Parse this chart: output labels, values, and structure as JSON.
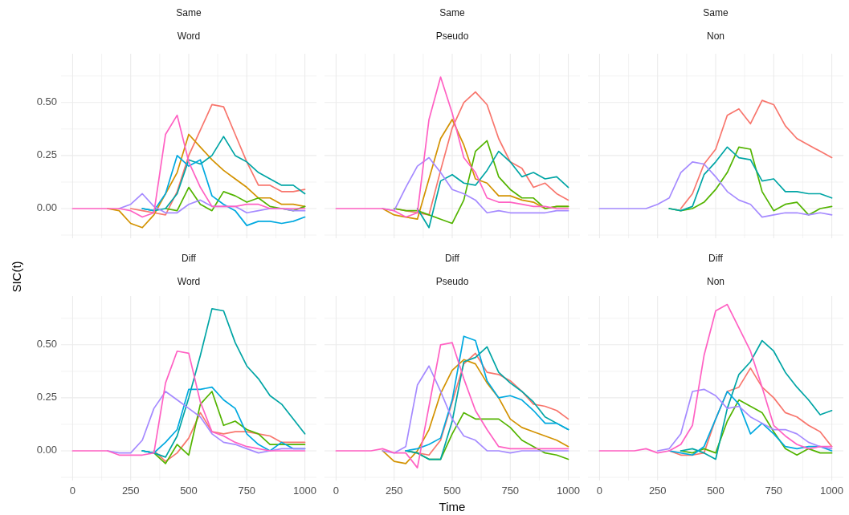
{
  "chart_data": [
    {
      "type": "line",
      "title": "Same",
      "subtitle": "Word",
      "x": [
        0,
        50,
        100,
        150,
        200,
        250,
        300,
        350,
        400,
        450,
        500,
        550,
        600,
        650,
        700,
        750,
        800,
        850,
        900,
        950,
        1000
      ],
      "xlim": [
        -50,
        1050
      ],
      "xticks": [
        0,
        {
          "value": 125,
          "label": null
        },
        250,
        {
          "value": 375,
          "label": null
        },
        500,
        {
          "value": 625,
          "label": null
        },
        750,
        {
          "value": 875,
          "label": null
        },
        1000
      ],
      "ylim": [
        -0.14,
        0.73
      ],
      "yticks": [
        {
          "value": -0.125,
          "label": null
        },
        {
          "value": 0,
          "label": "0.00"
        },
        {
          "value": 0.125,
          "label": null
        },
        {
          "value": 0.25,
          "label": "0.25"
        },
        {
          "value": 0.375,
          "label": null
        },
        {
          "value": 0.5,
          "label": "0.50"
        },
        {
          "value": 0.625,
          "label": null
        }
      ],
      "grid": true,
      "tick_labels": "y",
      "series": [
        {
          "color": "#F8766D",
          "values": [
            null,
            null,
            null,
            null,
            null,
            0,
            -0.01,
            -0.02,
            -0.03,
            0.08,
            0.25,
            0.37,
            0.49,
            0.48,
            0.35,
            0.22,
            0.11,
            0.11,
            0.08,
            0.08,
            0.09
          ]
        },
        {
          "color": "#D39200",
          "values": [
            null,
            null,
            null,
            0,
            -0.01,
            -0.07,
            -0.09,
            -0.03,
            0.07,
            0.17,
            0.35,
            0.29,
            0.23,
            0.18,
            0.14,
            0.1,
            0.05,
            0.05,
            0.02,
            0.02,
            0.01
          ]
        },
        {
          "color": "#53B400",
          "values": [
            null,
            null,
            null,
            null,
            null,
            null,
            null,
            null,
            0,
            -0.01,
            0.1,
            0.02,
            -0.01,
            0.08,
            0.06,
            0.03,
            0.05,
            0.01,
            0,
            -0.01,
            0.01
          ]
        },
        {
          "color": "#00A5A5",
          "values": [
            null,
            null,
            null,
            null,
            null,
            null,
            0,
            -0.01,
            0,
            0.07,
            0.23,
            0.21,
            0.25,
            0.34,
            0.25,
            0.22,
            0.17,
            0.14,
            0.11,
            0.11,
            0.07
          ]
        },
        {
          "color": "#00A9E0",
          "values": [
            null,
            null,
            null,
            null,
            null,
            null,
            0,
            -0.01,
            0.07,
            0.25,
            0.2,
            0.23,
            0.06,
            0.02,
            -0.01,
            -0.08,
            -0.06,
            -0.06,
            -0.07,
            -0.06,
            -0.04
          ]
        },
        {
          "color": "#A58AFF",
          "values": [
            null,
            null,
            null,
            null,
            0,
            0.02,
            0.07,
            0.01,
            -0.02,
            -0.02,
            0.02,
            0.04,
            0.01,
            0.01,
            0.01,
            -0.02,
            -0.01,
            0,
            0,
            -0.01,
            -0.01
          ]
        },
        {
          "color": "#FF61C3",
          "values": [
            0,
            0,
            0,
            0,
            0,
            -0.01,
            -0.04,
            -0.02,
            0.35,
            0.44,
            0.22,
            0.1,
            0.01,
            0.01,
            0.01,
            0.02,
            0.02,
            0,
            0,
            0,
            0
          ]
        }
      ]
    },
    {
      "type": "line",
      "title": "Same",
      "subtitle": "Pseudo",
      "x": [
        0,
        50,
        100,
        150,
        200,
        250,
        300,
        350,
        400,
        450,
        500,
        550,
        600,
        650,
        700,
        750,
        800,
        850,
        900,
        950,
        1000
      ],
      "xlim": [
        -50,
        1050
      ],
      "xticks": [
        0,
        {
          "value": 125,
          "label": null
        },
        250,
        {
          "value": 375,
          "label": null
        },
        500,
        {
          "value": 625,
          "label": null
        },
        750,
        {
          "value": 875,
          "label": null
        },
        1000
      ],
      "ylim": [
        -0.14,
        0.73
      ],
      "yticks": [
        {
          "value": -0.125,
          "label": null
        },
        0,
        {
          "value": 0.125,
          "label": null
        },
        0.25,
        {
          "value": 0.375,
          "label": null
        },
        0.5,
        {
          "value": 0.625,
          "label": null
        }
      ],
      "grid": true,
      "tick_labels": false,
      "series": [
        {
          "color": "#F8766D",
          "values": [
            null,
            null,
            null,
            null,
            null,
            0,
            -0.01,
            -0.02,
            -0.03,
            0.18,
            0.38,
            0.5,
            0.55,
            0.49,
            0.33,
            0.22,
            0.19,
            0.1,
            0.12,
            0.07,
            0.04
          ]
        },
        {
          "color": "#D39200",
          "values": [
            null,
            null,
            null,
            null,
            0,
            -0.03,
            -0.04,
            -0.05,
            0.14,
            0.33,
            0.42,
            0.3,
            0.14,
            0.12,
            0.06,
            0.06,
            0.04,
            0.03,
            0,
            0.01,
            0.01
          ]
        },
        {
          "color": "#53B400",
          "values": [
            null,
            null,
            null,
            null,
            null,
            0,
            -0.01,
            -0.01,
            -0.03,
            -0.05,
            -0.07,
            0.04,
            0.27,
            0.32,
            0.15,
            0.09,
            0.05,
            0.05,
            0,
            0.01,
            0.01
          ]
        },
        {
          "color": "#00A5A5",
          "values": [
            null,
            null,
            null,
            null,
            null,
            null,
            null,
            0,
            -0.09,
            0.13,
            0.16,
            0.12,
            0.11,
            0.18,
            0.27,
            0.22,
            0.15,
            0.17,
            0.14,
            0.15,
            0.1
          ]
        },
        {
          "color": "#A58AFF",
          "values": [
            null,
            null,
            null,
            null,
            0,
            -0.01,
            0.1,
            0.2,
            0.24,
            0.17,
            0.09,
            0.07,
            0.04,
            -0.02,
            -0.01,
            -0.02,
            -0.02,
            -0.02,
            -0.02,
            -0.01,
            -0.01
          ]
        },
        {
          "color": "#FF61C3",
          "values": [
            0,
            0,
            0,
            0,
            0,
            -0.01,
            -0.04,
            -0.02,
            0.42,
            0.62,
            0.45,
            0.24,
            0.17,
            0.05,
            0.03,
            0.03,
            0.02,
            0.01,
            0.01,
            0,
            0
          ]
        }
      ]
    },
    {
      "type": "line",
      "title": "Same",
      "subtitle": "Non",
      "x": [
        0,
        50,
        100,
        150,
        200,
        250,
        300,
        350,
        400,
        450,
        500,
        550,
        600,
        650,
        700,
        750,
        800,
        850,
        900,
        950,
        1000
      ],
      "xlim": [
        -50,
        1050
      ],
      "xticks": [
        0,
        {
          "value": 125,
          "label": null
        },
        250,
        {
          "value": 375,
          "label": null
        },
        500,
        {
          "value": 625,
          "label": null
        },
        750,
        {
          "value": 875,
          "label": null
        },
        1000
      ],
      "ylim": [
        -0.14,
        0.73
      ],
      "yticks": [
        {
          "value": -0.125,
          "label": null
        },
        0,
        {
          "value": 0.125,
          "label": null
        },
        0.25,
        {
          "value": 0.375,
          "label": null
        },
        0.5,
        {
          "value": 0.625,
          "label": null
        }
      ],
      "grid": true,
      "tick_labels": false,
      "series": [
        {
          "color": "#F8766D",
          "values": [
            null,
            null,
            null,
            null,
            null,
            null,
            null,
            0,
            0.07,
            0.21,
            0.28,
            0.44,
            0.47,
            0.4,
            0.51,
            0.49,
            0.39,
            0.33,
            0.3,
            0.27,
            0.24
          ]
        },
        {
          "color": "#53B400",
          "values": [
            null,
            null,
            null,
            null,
            null,
            null,
            0,
            -0.01,
            0,
            0.03,
            0.09,
            0.17,
            0.29,
            0.28,
            0.08,
            -0.01,
            0.02,
            0.03,
            -0.03,
            0,
            0.01
          ]
        },
        {
          "color": "#00A5A5",
          "values": [
            null,
            null,
            null,
            null,
            null,
            null,
            0,
            -0.01,
            0.01,
            0.16,
            0.22,
            0.29,
            0.24,
            0.23,
            0.13,
            0.14,
            0.08,
            0.08,
            0.07,
            0.07,
            0.05
          ]
        },
        {
          "color": "#A58AFF",
          "values": [
            0,
            0,
            0,
            0,
            0,
            0.02,
            0.05,
            0.17,
            0.22,
            0.21,
            0.15,
            0.08,
            0.04,
            0.02,
            -0.04,
            -0.03,
            -0.02,
            -0.02,
            -0.03,
            -0.02,
            -0.03
          ]
        }
      ]
    },
    {
      "type": "line",
      "title": "Diff",
      "subtitle": "Word",
      "ylabel": "SIC(t)",
      "x": [
        0,
        50,
        100,
        150,
        200,
        250,
        300,
        350,
        400,
        450,
        500,
        550,
        600,
        650,
        700,
        750,
        800,
        850,
        900,
        950,
        1000
      ],
      "xlim": [
        -50,
        1050
      ],
      "xticks": [
        0,
        {
          "value": 125,
          "label": null
        },
        250,
        {
          "value": 375,
          "label": null
        },
        500,
        {
          "value": 625,
          "label": null
        },
        750,
        {
          "value": 875,
          "label": null
        },
        1000
      ],
      "ylim": [
        -0.14,
        0.73
      ],
      "yticks": [
        {
          "value": -0.125,
          "label": null
        },
        {
          "value": 0,
          "label": "0.00"
        },
        {
          "value": 0.125,
          "label": null
        },
        {
          "value": 0.25,
          "label": "0.25"
        },
        {
          "value": 0.375,
          "label": null
        },
        {
          "value": 0.5,
          "label": "0.50"
        },
        {
          "value": 0.625,
          "label": null
        }
      ],
      "grid": true,
      "series": [
        {
          "color": "#F8766D",
          "values": [
            null,
            null,
            null,
            null,
            null,
            null,
            null,
            0,
            -0.05,
            -0.01,
            0.06,
            0.18,
            0.09,
            0.08,
            0.09,
            0.09,
            0.08,
            0.07,
            0.04,
            0.04,
            0.04
          ]
        },
        {
          "color": "#53B400",
          "values": [
            null,
            null,
            null,
            null,
            null,
            null,
            0,
            -0.01,
            -0.06,
            0.03,
            -0.02,
            0.22,
            0.28,
            0.12,
            0.14,
            0.1,
            0.08,
            0.03,
            0.03,
            0.03,
            0.03
          ]
        },
        {
          "color": "#00A5A5",
          "values": [
            null,
            null,
            null,
            null,
            null,
            null,
            0,
            -0.01,
            -0.03,
            0.07,
            0.25,
            0.45,
            0.67,
            0.66,
            0.51,
            0.4,
            0.34,
            0.26,
            0.22,
            0.15,
            0.08
          ]
        },
        {
          "color": "#00A9E0",
          "values": [
            null,
            null,
            null,
            null,
            null,
            null,
            0,
            -0.01,
            0.04,
            0.1,
            0.29,
            0.29,
            0.3,
            0.24,
            0.2,
            0.08,
            0.03,
            0,
            0.04,
            0.01,
            0.01
          ]
        },
        {
          "color": "#A58AFF",
          "values": [
            null,
            null,
            null,
            0,
            -0.01,
            -0.01,
            0.05,
            0.2,
            0.28,
            0.24,
            0.2,
            0.16,
            0.08,
            0.04,
            0.03,
            0.01,
            -0.01,
            0,
            0.01,
            0.01,
            0.01
          ]
        },
        {
          "color": "#FF61C3",
          "values": [
            0,
            0,
            0,
            0,
            -0.02,
            -0.02,
            -0.02,
            -0.01,
            0.32,
            0.47,
            0.46,
            0.23,
            0.09,
            0.07,
            0.04,
            0.02,
            0.01,
            0,
            0,
            0,
            0
          ]
        }
      ]
    },
    {
      "type": "line",
      "title": "Diff",
      "subtitle": "Pseudo",
      "xlabel": "Time",
      "x": [
        0,
        50,
        100,
        150,
        200,
        250,
        300,
        350,
        400,
        450,
        500,
        550,
        600,
        650,
        700,
        750,
        800,
        850,
        900,
        950,
        1000
      ],
      "xlim": [
        -50,
        1050
      ],
      "xticks": [
        0,
        {
          "value": 125,
          "label": null
        },
        250,
        {
          "value": 375,
          "label": null
        },
        500,
        {
          "value": 625,
          "label": null
        },
        750,
        {
          "value": 875,
          "label": null
        },
        1000
      ],
      "ylim": [
        -0.14,
        0.73
      ],
      "yticks": [
        {
          "value": -0.125,
          "label": null
        },
        0,
        {
          "value": 0.125,
          "label": null
        },
        0.25,
        {
          "value": 0.375,
          "label": null
        },
        0.5,
        {
          "value": 0.625,
          "label": null
        }
      ],
      "grid": true,
      "tick_labels": "x",
      "series": [
        {
          "color": "#F8766D",
          "values": [
            null,
            null,
            null,
            null,
            null,
            null,
            0,
            -0.01,
            -0.02,
            0.05,
            0.23,
            0.41,
            0.46,
            0.37,
            0.36,
            0.33,
            0.28,
            0.22,
            0.21,
            0.19,
            0.15
          ]
        },
        {
          "color": "#D39200",
          "values": [
            null,
            null,
            null,
            null,
            0,
            -0.05,
            -0.06,
            0,
            0.1,
            0.27,
            0.38,
            0.43,
            0.41,
            0.32,
            0.25,
            0.15,
            0.11,
            0.09,
            0.07,
            0.05,
            0.02
          ]
        },
        {
          "color": "#53B400",
          "values": [
            null,
            null,
            null,
            null,
            null,
            null,
            0,
            -0.01,
            -0.04,
            -0.04,
            0.08,
            0.18,
            0.15,
            0.15,
            0.15,
            0.11,
            0.05,
            0.02,
            -0.01,
            -0.02,
            -0.04
          ]
        },
        {
          "color": "#00A5A5",
          "values": [
            null,
            null,
            null,
            null,
            null,
            null,
            0,
            -0.01,
            -0.04,
            -0.04,
            0.14,
            0.42,
            0.44,
            0.49,
            0.37,
            0.32,
            0.28,
            0.23,
            0.16,
            0.13,
            0.1
          ]
        },
        {
          "color": "#00A9E0",
          "values": [
            null,
            null,
            null,
            null,
            null,
            null,
            0,
            0.01,
            0.03,
            0.06,
            0.24,
            0.54,
            0.52,
            0.33,
            0.25,
            0.26,
            0.24,
            0.19,
            0.13,
            0.13,
            0.1
          ]
        },
        {
          "color": "#A58AFF",
          "values": [
            null,
            null,
            null,
            null,
            0,
            -0.01,
            0.02,
            0.31,
            0.4,
            0.28,
            0.15,
            0.07,
            0.05,
            0,
            0,
            -0.01,
            0,
            0,
            0,
            0,
            0
          ]
        },
        {
          "color": "#FF61C3",
          "values": [
            0,
            0,
            0,
            0,
            0.01,
            -0.01,
            -0.01,
            -0.08,
            0.21,
            0.5,
            0.51,
            0.34,
            0.19,
            0.1,
            0.02,
            0.01,
            0.01,
            0.01,
            0.01,
            0.01,
            0.01
          ]
        }
      ]
    },
    {
      "type": "line",
      "title": "Diff",
      "subtitle": "Non",
      "x": [
        0,
        50,
        100,
        150,
        200,
        250,
        300,
        350,
        400,
        450,
        500,
        550,
        600,
        650,
        700,
        750,
        800,
        850,
        900,
        950,
        1000
      ],
      "xlim": [
        -50,
        1050
      ],
      "xticks": [
        0,
        {
          "value": 125,
          "label": null
        },
        250,
        {
          "value": 375,
          "label": null
        },
        500,
        {
          "value": 625,
          "label": null
        },
        750,
        {
          "value": 875,
          "label": null
        },
        1000
      ],
      "ylim": [
        -0.14,
        0.73
      ],
      "yticks": [
        {
          "value": -0.125,
          "label": null
        },
        0,
        {
          "value": 0.125,
          "label": null
        },
        0.25,
        {
          "value": 0.375,
          "label": null
        },
        0.5,
        {
          "value": 0.625,
          "label": null
        }
      ],
      "grid": true,
      "tick_labels": "x",
      "series": [
        {
          "color": "#F8766D",
          "values": [
            null,
            null,
            null,
            null,
            null,
            null,
            0,
            -0.02,
            -0.02,
            -0.01,
            0.15,
            0.28,
            0.3,
            0.39,
            0.3,
            0.25,
            0.18,
            0.16,
            0.12,
            0.09,
            0.02
          ]
        },
        {
          "color": "#53B400",
          "values": [
            null,
            null,
            null,
            null,
            null,
            null,
            null,
            0,
            -0.01,
            0.01,
            -0.01,
            0.14,
            0.24,
            0.21,
            0.18,
            0.09,
            0.01,
            -0.02,
            0.01,
            -0.01,
            -0.01
          ]
        },
        {
          "color": "#00A5A5",
          "values": [
            null,
            null,
            null,
            null,
            null,
            null,
            null,
            0,
            0.01,
            -0.01,
            -0.04,
            0.2,
            0.36,
            0.42,
            0.52,
            0.47,
            0.37,
            0.3,
            0.24,
            0.17,
            0.19
          ]
        },
        {
          "color": "#00A9E0",
          "values": [
            null,
            null,
            null,
            null,
            null,
            null,
            0,
            -0.01,
            -0.02,
            0.02,
            0.15,
            0.28,
            0.22,
            0.08,
            0.13,
            0.08,
            0.02,
            0.01,
            0.02,
            0.02,
            0
          ]
        },
        {
          "color": "#A58AFF",
          "values": [
            null,
            null,
            null,
            null,
            null,
            0,
            0.01,
            0.08,
            0.28,
            0.29,
            0.26,
            0.2,
            0.21,
            0.16,
            0.13,
            0.1,
            0.1,
            0.08,
            0.04,
            0.02,
            0.01
          ]
        },
        {
          "color": "#FF61C3",
          "values": [
            0,
            0,
            0,
            0,
            0.01,
            -0.01,
            0,
            0.03,
            0.12,
            0.45,
            0.66,
            0.69,
            0.58,
            0.47,
            0.3,
            0.12,
            0.07,
            0.03,
            0.01,
            0.02,
            0.02
          ]
        }
      ]
    }
  ]
}
